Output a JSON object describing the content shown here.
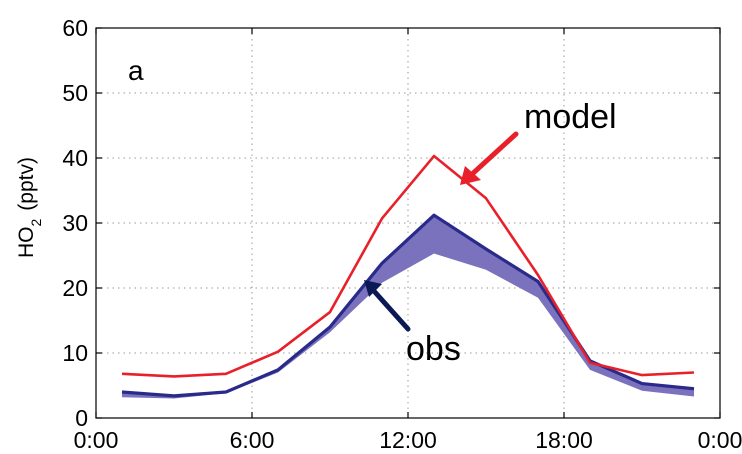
{
  "chart_data": {
    "type": "line",
    "panel_label": "a",
    "ylabel": {
      "main": "HO",
      "subscript": "2",
      "unit": "(pptv)"
    },
    "xlim": [
      0,
      24
    ],
    "ylim": [
      0,
      60
    ],
    "x_ticks": [
      {
        "value": 0,
        "label": "0:00"
      },
      {
        "value": 6,
        "label": "6:00"
      },
      {
        "value": 12,
        "label": "12:00"
      },
      {
        "value": 18,
        "label": "18:00"
      },
      {
        "value": 24,
        "label": "0:00"
      }
    ],
    "y_ticks": [
      {
        "value": 0,
        "label": "0"
      },
      {
        "value": 10,
        "label": "10"
      },
      {
        "value": 20,
        "label": "20"
      },
      {
        "value": 30,
        "label": "30"
      },
      {
        "value": 40,
        "label": "40"
      },
      {
        "value": 50,
        "label": "50"
      },
      {
        "value": 60,
        "label": "60"
      }
    ],
    "grid": true,
    "x": [
      1,
      3,
      5,
      7,
      9,
      11,
      13,
      15,
      17,
      19,
      21,
      23
    ],
    "series": [
      {
        "name": "model",
        "color": "#e8202a",
        "values": [
          6.8,
          6.4,
          6.8,
          10.2,
          16.3,
          30.7,
          40.3,
          33.8,
          22.0,
          8.5,
          6.6,
          7.0
        ]
      },
      {
        "name": "obs",
        "color": "#2a2a8a",
        "band_color": "#7b72be",
        "values": [
          4.0,
          3.4,
          4.0,
          7.4,
          14.0,
          23.8,
          31.2,
          26.0,
          21.0,
          8.8,
          5.3,
          4.5
        ],
        "lower": [
          3.2,
          3.0,
          3.8,
          7.0,
          13.2,
          20.8,
          25.3,
          22.8,
          18.5,
          7.4,
          4.2,
          3.3
        ]
      }
    ],
    "annotations": [
      {
        "text": "model",
        "arrow_color": "#e8202a",
        "target_series": "model"
      },
      {
        "text": "obs",
        "arrow_color": "#0b1a55",
        "target_series": "obs"
      }
    ]
  }
}
